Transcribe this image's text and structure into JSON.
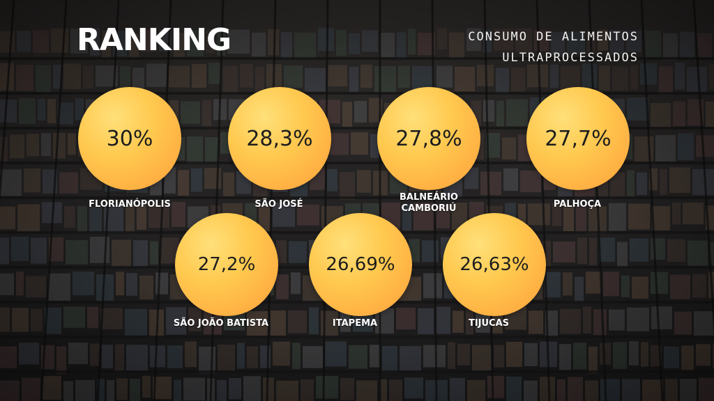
{
  "header": {
    "title": "RANKING",
    "subtitle_line1": "CONSUMO DE ALIMENTOS",
    "subtitle_line2": "ULTRAPROCESSADOS"
  },
  "ranking": [
    {
      "city": "FLORIANÓPOLIS",
      "value": "30%"
    },
    {
      "city": "SÃO JOSÉ",
      "value": "28,3%"
    },
    {
      "city_line1": "BALNEÁRIO",
      "city_line2": "CAMBORIÚ",
      "value": "27,8%"
    },
    {
      "city": "PALHOÇA",
      "value": "27,7%"
    },
    {
      "city": "SÃO JOÃO BATISTA",
      "value": "27,2%"
    },
    {
      "city": "ITAPEMA",
      "value": "26,69%"
    },
    {
      "city": "TIJUCAS",
      "value": "26,63%"
    }
  ],
  "colors": {
    "bubble_top": "#ffe07a",
    "bubble_bottom": "#ff9f3a",
    "text_dark": "#1d1d1d",
    "text_light": "#ffffff"
  }
}
